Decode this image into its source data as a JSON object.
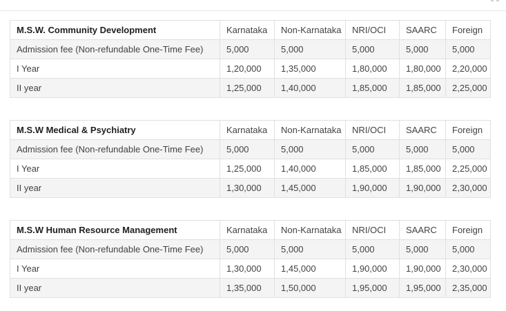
{
  "colors": {
    "row_stripe": "#f4f4f4",
    "cell_border": "#e0e0e0",
    "body_text": "#424242",
    "title_text": "#1f1f1f",
    "top_rule": "#e7e7e7"
  },
  "tables": [
    {
      "title": "M.S.W. Community Development",
      "columns": [
        "Karnataka",
        "Non-Karnataka",
        "NRI/OCI",
        "SAARC",
        "Foreign"
      ],
      "rows": [
        {
          "label": "Admission fee (Non-refundable One-Time Fee)",
          "values": [
            "5,000",
            "5,000",
            "5,000",
            "5,000",
            "5,000"
          ]
        },
        {
          "label": "I Year",
          "values": [
            "1,20,000",
            "1,35,000",
            "1,80,000",
            "1,80,000",
            "2,20,000"
          ]
        },
        {
          "label": "II year",
          "values": [
            "1,25,000",
            "1,40,000",
            "1,85,000",
            "1,85,000",
            "2,25,000"
          ]
        }
      ]
    },
    {
      "title": "M.S.W Medical & Psychiatry",
      "columns": [
        "Karnataka",
        "Non-Karnataka",
        "NRI/OCI",
        "SAARC",
        "Foreign"
      ],
      "rows": [
        {
          "label": "Admission fee (Non-refundable One-Time Fee)",
          "values": [
            "5,000",
            "5,000",
            "5,000",
            "5,000",
            "5,000"
          ]
        },
        {
          "label": "I Year",
          "values": [
            "1,25,000",
            "1,40,000",
            "1,85,000",
            "1,85,000",
            "2,25,000"
          ]
        },
        {
          "label": "II year",
          "values": [
            "1,30,000",
            "1,45,000",
            "1,90,000",
            "1,90,000",
            "2,30,000"
          ]
        }
      ]
    },
    {
      "title": "M.S.W Human Resource Management",
      "columns": [
        "Karnataka",
        "Non-Karnataka",
        "NRI/OCI",
        "SAARC",
        "Foreign"
      ],
      "rows": [
        {
          "label": "Admission fee (Non-refundable One-Time Fee)",
          "values": [
            "5,000",
            "5,000",
            "5,000",
            "5,000",
            "5,000"
          ]
        },
        {
          "label": "I Year",
          "values": [
            "1,30,000",
            "1,45,000",
            "1,90,000",
            "1,90,000",
            "2,30,000"
          ]
        },
        {
          "label": "II year",
          "values": [
            "1,35,000",
            "1,50,000",
            "1,95,000",
            "1,95,000",
            "2,35,000"
          ]
        }
      ]
    }
  ]
}
